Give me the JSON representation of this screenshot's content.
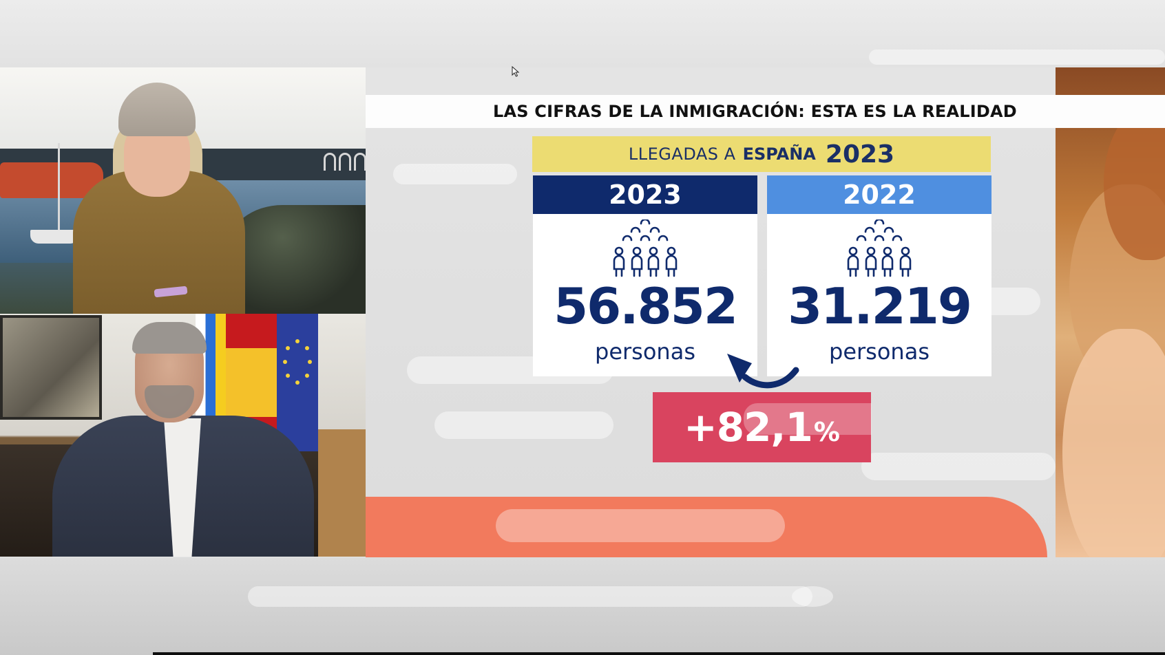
{
  "headline": "LAS CIFRAS DE LA INMIGRACIÓN: ESTA ES LA REALIDAD",
  "subtitle": {
    "prefix": "LLEGADAS A",
    "country": "ESPAÑA",
    "year": "2023"
  },
  "cards": [
    {
      "year": "2023",
      "number": "56.852",
      "unit": "personas",
      "color": "#0f2a6c",
      "icon": "people-group-icon"
    },
    {
      "year": "2022",
      "number": "31.219",
      "unit": "personas",
      "color": "#4f8fe0",
      "icon": "people-group-icon"
    }
  ],
  "change": {
    "value": "+82,1",
    "sign": "%",
    "color": "#d9445f"
  },
  "colors": {
    "subtitle_bg": "#ecdc72",
    "navy": "#0f2a6c",
    "orange_band": "#f27a5d"
  }
}
